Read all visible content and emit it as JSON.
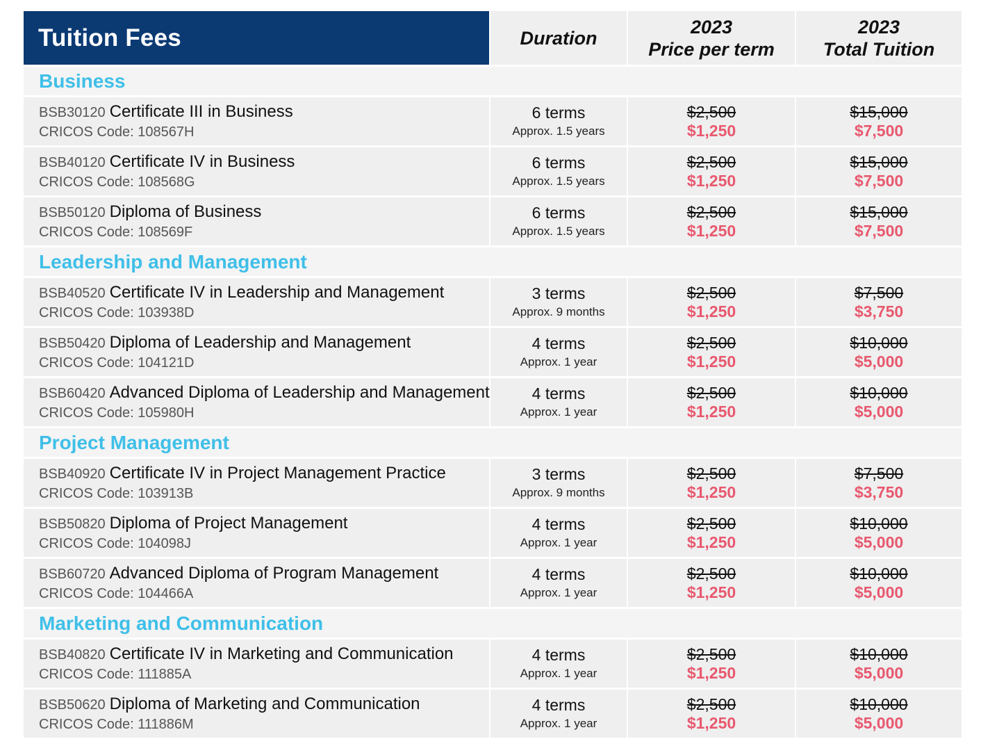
{
  "header": {
    "title": "Tuition Fees",
    "duration": "Duration",
    "price_year": "2023",
    "price_label": "Price per term",
    "total_year": "2023",
    "total_label": "Total Tuition"
  },
  "colors": {
    "header_bg": "#0b3a73",
    "category_text": "#3fbfe8",
    "discount_price": "#e8586e",
    "row_bg": "#efefef"
  },
  "categories": [
    {
      "name": "Business",
      "courses": [
        {
          "code": "BSB30120",
          "title": "Certificate III in Business",
          "cricos": "CRICOS Code: 108567H",
          "terms": "6 terms",
          "approx": "Approx. 1.5 years",
          "price_old": "$2,500",
          "price_new": "$1,250",
          "total_old": "$15,000",
          "total_new": "$7,500"
        },
        {
          "code": "BSB40120",
          "title": "Certificate IV in Business",
          "cricos": "CRICOS Code: 108568G",
          "terms": "6 terms",
          "approx": "Approx. 1.5 years",
          "price_old": "$2,500",
          "price_new": "$1,250",
          "total_old": "$15,000",
          "total_new": "$7,500"
        },
        {
          "code": "BSB50120",
          "title": "Diploma of Business",
          "cricos": "CRICOS Code: 108569F",
          "terms": "6 terms",
          "approx": "Approx. 1.5 years",
          "price_old": "$2,500",
          "price_new": "$1,250",
          "total_old": "$15,000",
          "total_new": "$7,500"
        }
      ]
    },
    {
      "name": "Leadership and Management",
      "courses": [
        {
          "code": "BSB40520",
          "title": "Certificate IV in Leadership and Management",
          "cricos": "CRICOS Code: 103938D",
          "terms": "3 terms",
          "approx": "Approx. 9 months",
          "price_old": "$2,500",
          "price_new": "$1,250",
          "total_old": "$7,500",
          "total_new": "$3,750"
        },
        {
          "code": "BSB50420",
          "title": "Diploma of Leadership and Management",
          "cricos": "CRICOS Code: 104121D",
          "terms": "4 terms",
          "approx": "Approx. 1 year",
          "price_old": "$2,500",
          "price_new": "$1,250",
          "total_old": "$10,000",
          "total_new": "$5,000"
        },
        {
          "code": "BSB60420",
          "title": "Advanced Diploma of Leadership and Management",
          "cricos": "CRICOS Code: 105980H",
          "terms": "4 terms",
          "approx": "Approx. 1 year",
          "price_old": "$2,500",
          "price_new": "$1,250",
          "total_old": "$10,000",
          "total_new": "$5,000"
        }
      ]
    },
    {
      "name": "Project Management",
      "courses": [
        {
          "code": "BSB40920",
          "title": "Certificate IV in Project Management Practice",
          "cricos": "CRICOS Code: 103913B",
          "terms": "3 terms",
          "approx": "Approx. 9 months",
          "price_old": "$2,500",
          "price_new": "$1,250",
          "total_old": "$7,500",
          "total_new": "$3,750"
        },
        {
          "code": "BSB50820",
          "title": "Diploma of Project Management",
          "cricos": "CRICOS Code: 104098J",
          "terms": "4 terms",
          "approx": "Approx. 1 year",
          "price_old": "$2,500",
          "price_new": "$1,250",
          "total_old": "$10,000",
          "total_new": "$5,000"
        },
        {
          "code": "BSB60720",
          "title": "Advanced Diploma of Program Management",
          "cricos": "CRICOS Code: 104466A",
          "terms": "4 terms",
          "approx": "Approx. 1 year",
          "price_old": "$2,500",
          "price_new": "$1,250",
          "total_old": "$10,000",
          "total_new": "$5,000"
        }
      ]
    },
    {
      "name": "Marketing and Communication",
      "courses": [
        {
          "code": "BSB40820",
          "title": "Certificate IV in Marketing and Communication",
          "cricos": "CRICOS Code: 111885A",
          "terms": "4 terms",
          "approx": "Approx. 1 year",
          "price_old": "$2,500",
          "price_new": "$1,250",
          "total_old": "$10,000",
          "total_new": "$5,000"
        },
        {
          "code": "BSB50620",
          "title": "Diploma of Marketing and Communication",
          "cricos": "CRICOS Code: 111886M",
          "terms": "4 terms",
          "approx": "Approx. 1 year",
          "price_old": "$2,500",
          "price_new": "$1,250",
          "total_old": "$10,000",
          "total_new": "$5,000"
        }
      ]
    }
  ]
}
